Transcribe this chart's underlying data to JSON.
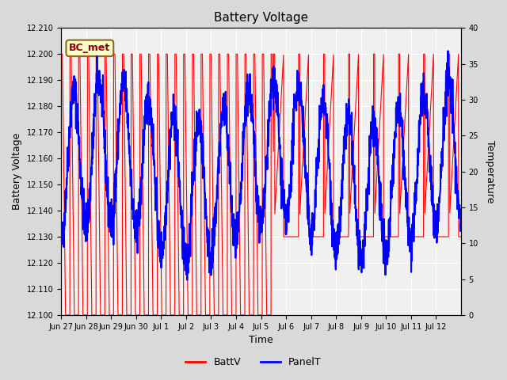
{
  "title": "Battery Voltage",
  "xlabel": "Time",
  "ylabel_left": "Battery Voltage",
  "ylabel_right": "Temperature",
  "ylim_left": [
    12.1,
    12.21
  ],
  "ylim_right": [
    0,
    40
  ],
  "yticks_left": [
    12.1,
    12.11,
    12.12,
    12.13,
    12.14,
    12.15,
    12.16,
    12.17,
    12.18,
    12.19,
    12.2,
    12.21
  ],
  "yticks_right": [
    0,
    5,
    10,
    15,
    20,
    25,
    30,
    35,
    40
  ],
  "legend_labels": [
    "BattV",
    "PanelT"
  ],
  "legend_colors": [
    "red",
    "blue"
  ],
  "annotation_text": "BC_met",
  "annotation_bg": "#ffffcc",
  "annotation_border": "#8B6914",
  "bg_color": "#e8e8e8",
  "plot_bg_color": "#f0f0f0",
  "grid_color": "white",
  "batt_color": "red",
  "panel_color": "blue",
  "xtick_labels": [
    "Jun 27",
    "Jun 28",
    "Jun 29",
    "Jun 30",
    "Jul 1",
    "Jul 2",
    "Jul 3",
    "Jul 4",
    "Jul 5",
    "Jul 6",
    "Jul 7",
    "Jul 8",
    "Jul 9",
    "Jul 10",
    "Jul 11",
    "Jul 12"
  ],
  "num_days": 16
}
